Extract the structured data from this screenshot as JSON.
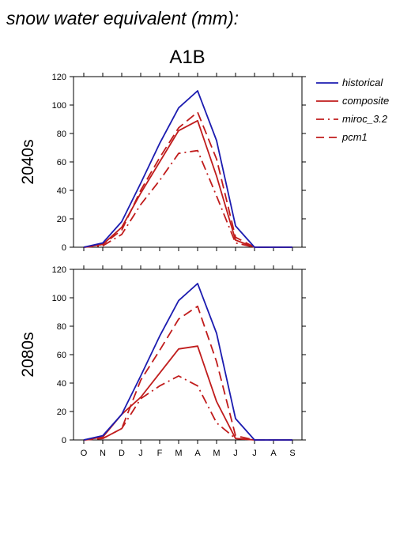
{
  "figure": {
    "title": "snow water equivalent (mm):",
    "subtitle": "A1B"
  },
  "legend": {
    "placement": "right",
    "entries": [
      {
        "name": "historical",
        "color": "#1c1cb0",
        "dash": "solid"
      },
      {
        "name": "composite",
        "color": "#c01c1c",
        "dash": "solid"
      },
      {
        "name": "miroc_3.2",
        "color": "#c01c1c",
        "dash": "dashdot"
      },
      {
        "name": "pcm1",
        "color": "#c01c1c",
        "dash": "dash"
      }
    ]
  },
  "colors": {
    "historical": "#1c1cb0",
    "scenario": "#c01c1c"
  },
  "chart_data": [
    {
      "type": "line",
      "panel_label": "2040s",
      "categories": [
        "O",
        "N",
        "D",
        "J",
        "F",
        "M",
        "A",
        "M",
        "J",
        "J",
        "A",
        "S"
      ],
      "ylim": [
        0,
        120
      ],
      "yticks": [
        0,
        20,
        40,
        60,
        80,
        100,
        120
      ],
      "grid": false,
      "series": [
        {
          "name": "historical",
          "values": [
            0,
            3,
            18,
            45,
            73,
            98,
            110,
            75,
            15,
            0,
            0,
            0
          ]
        },
        {
          "name": "composite",
          "values": [
            0,
            2,
            14,
            38,
            60,
            82,
            89,
            50,
            5,
            0,
            0,
            0
          ]
        },
        {
          "name": "miroc_3.2",
          "values": [
            0,
            1,
            9,
            30,
            47,
            66,
            68,
            36,
            3,
            0,
            0,
            0
          ]
        },
        {
          "name": "pcm1",
          "values": [
            0,
            2,
            12,
            40,
            63,
            84,
            95,
            62,
            7,
            0,
            0,
            0
          ]
        }
      ]
    },
    {
      "type": "line",
      "panel_label": "2080s",
      "categories": [
        "O",
        "N",
        "D",
        "J",
        "F",
        "M",
        "A",
        "M",
        "J",
        "J",
        "A",
        "S"
      ],
      "ylim": [
        0,
        120
      ],
      "yticks": [
        0,
        20,
        40,
        60,
        80,
        100,
        120
      ],
      "grid": false,
      "series": [
        {
          "name": "historical",
          "values": [
            0,
            3,
            18,
            45,
            73,
            98,
            110,
            75,
            15,
            0,
            0,
            0
          ]
        },
        {
          "name": "composite",
          "values": [
            0,
            2,
            18,
            30,
            47,
            64,
            66,
            27,
            1,
            0,
            0,
            0
          ]
        },
        {
          "name": "miroc_3.2",
          "values": [
            0,
            1,
            8,
            29,
            38,
            45,
            38,
            12,
            1,
            0,
            0,
            0
          ]
        },
        {
          "name": "pcm1",
          "values": [
            0,
            1,
            8,
            42,
            63,
            85,
            94,
            55,
            3,
            0,
            0,
            0
          ]
        }
      ]
    }
  ]
}
